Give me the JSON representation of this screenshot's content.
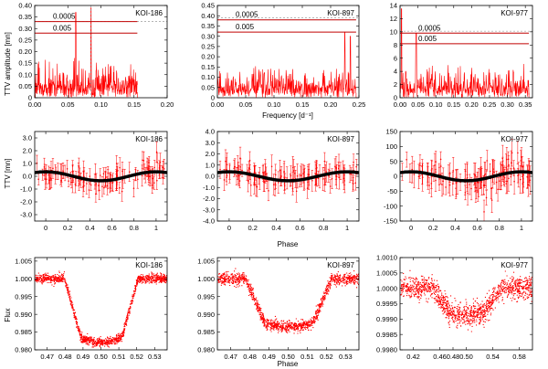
{
  "figure": {
    "ylabels": {
      "row0": "TTV amplitude [mn]",
      "row1": "TTV [mn]",
      "row2": "Flux"
    },
    "xlabels": {
      "row0": "Frequency [d⁻¹]",
      "row1": "Phase",
      "row2": "Phase"
    },
    "colors": {
      "data": "#ff0000",
      "model": "#000000",
      "threshold": "#c00000",
      "dashed": "#888888"
    }
  },
  "chart_data": [
    {
      "type": "line",
      "row": 0,
      "col": 0,
      "label": "KOI-186",
      "xlim": [
        0,
        0.2
      ],
      "ylim": [
        0,
        0.4
      ],
      "xticks": [
        "0.00",
        "0.05",
        "0.10",
        "0.15",
        "0.20"
      ],
      "yticks": [
        "0",
        "0.05",
        "0.10",
        "0.15",
        "0.20",
        "0.25",
        "0.30",
        "0.35",
        "0.40"
      ],
      "xmax_data": 0.155,
      "base": 0.06,
      "noise": 0.12,
      "peaks": [
        [
          0.062,
          0.37
        ],
        [
          0.085,
          0.39
        ]
      ],
      "thresholds": [
        {
          "label": "0.0005",
          "value": 0.33
        },
        {
          "label": "0.005",
          "value": 0.28
        }
      ],
      "dashed_y": 0.33,
      "dashed_x": 0.085
    },
    {
      "type": "line",
      "row": 0,
      "col": 1,
      "label": "KOI-897",
      "xlim": [
        0,
        0.25
      ],
      "ylim": [
        0,
        0.45
      ],
      "xticks": [
        "0.00",
        "0.05",
        "0.10",
        "0.15",
        "0.20",
        "0.25"
      ],
      "yticks": [
        "0",
        "0.05",
        "0.10",
        "0.15",
        "0.20",
        "0.25",
        "0.30",
        "0.35",
        "0.40",
        "0.45"
      ],
      "xmax_data": 0.245,
      "base": 0.06,
      "noise": 0.1,
      "peaks": [
        [
          0.225,
          0.32
        ],
        [
          0.235,
          0.3
        ]
      ],
      "thresholds": [
        {
          "label": "0.0005",
          "value": 0.38
        },
        {
          "label": "0.005",
          "value": 0.32
        }
      ],
      "dashed_y": 0.39,
      "dashed_x": null
    },
    {
      "type": "line",
      "row": 0,
      "col": 2,
      "label": "KOI-977",
      "xlim": [
        0,
        0.37
      ],
      "ylim": [
        0,
        14
      ],
      "xticks": [
        "0.00",
        "0.05",
        "0.10",
        "0.15",
        "0.20",
        "0.25",
        "0.30",
        "0.35"
      ],
      "yticks": [
        "0",
        "2",
        "4",
        "6",
        "8",
        "10",
        "12",
        "14"
      ],
      "xmax_data": 0.36,
      "base": 1.8,
      "noise": 3.5,
      "peaks": [
        [
          0.004,
          13.5
        ],
        [
          0.045,
          9.8
        ]
      ],
      "thresholds": [
        {
          "label": "0.0005",
          "value": 9.8
        },
        {
          "label": "0.005",
          "value": 8.2
        }
      ],
      "dashed_y": 10.1,
      "dashed_x": null
    },
    {
      "type": "scatter",
      "row": 1,
      "col": 0,
      "label": "KOI-186",
      "xlim": [
        -0.1,
        1.1
      ],
      "ylim": [
        -3.5,
        3.5
      ],
      "xticks": [
        "0",
        "0.2",
        "0.4",
        "0.6",
        "0.8",
        "1"
      ],
      "yticks": [
        "-3.0",
        "-2.0",
        "-1.0",
        "0.0",
        "1.0",
        "2.0",
        "3.0"
      ],
      "amp": 0.35,
      "err": 0.7,
      "scatter": 0.5
    },
    {
      "type": "scatter",
      "row": 1,
      "col": 1,
      "label": "KOI-897",
      "xlim": [
        -0.1,
        1.1
      ],
      "ylim": [
        -4,
        4
      ],
      "xticks": [
        "0",
        "0.2",
        "0.4",
        "0.6",
        "0.8",
        "1"
      ],
      "yticks": [
        "-4.0",
        "-3.0",
        "-2.0",
        "-1.0",
        "0.0",
        "1.0",
        "2.0",
        "3.0",
        "4.0"
      ],
      "amp": 0.4,
      "err": 0.9,
      "scatter": 0.6
    },
    {
      "type": "scatter",
      "row": 1,
      "col": 2,
      "label": "KOI-977",
      "xlim": [
        -0.1,
        1.1
      ],
      "ylim": [
        -150,
        150
      ],
      "xticks": [
        "0",
        "0.2",
        "0.4",
        "0.6",
        "0.8",
        "1"
      ],
      "yticks": [
        "-150",
        "-100",
        "-50",
        "0",
        "50",
        "100",
        "150"
      ],
      "amp": 15,
      "err": 40,
      "scatter": 25
    },
    {
      "type": "scatter",
      "row": 2,
      "col": 0,
      "label": "KOI-186",
      "xlim": [
        0.463,
        0.537
      ],
      "ylim": [
        0.98,
        1.006
      ],
      "xticks": [
        "0.47",
        "0.48",
        "0.49",
        "0.50",
        "0.51",
        "0.52",
        "0.53"
      ],
      "yticks": [
        "0.980",
        "0.985",
        "0.990",
        "0.995",
        "1.000",
        "1.005"
      ],
      "depth": 0.0165,
      "t1": 0.4795,
      "t2": 0.4885,
      "t3": 0.5115,
      "t4": 0.5205,
      "noise": 0.0006
    },
    {
      "type": "scatter",
      "row": 2,
      "col": 1,
      "label": "KOI-897",
      "xlim": [
        0.463,
        0.537
      ],
      "ylim": [
        0.98,
        1.006
      ],
      "xticks": [
        "0.47",
        "0.48",
        "0.49",
        "0.50",
        "0.51",
        "0.52",
        "0.53"
      ],
      "yticks": [
        "0.980",
        "0.985",
        "0.990",
        "0.995",
        "1.000",
        "1.005"
      ],
      "depth": 0.0125,
      "t1": 0.4775,
      "t2": 0.4875,
      "t3": 0.5125,
      "t4": 0.5225,
      "noise": 0.0008
    },
    {
      "type": "scatter",
      "row": 2,
      "col": 2,
      "label": "KOI-977",
      "xlim": [
        0.4,
        0.6
      ],
      "ylim": [
        0.998,
        1.001
      ],
      "xticks": [
        "0.42",
        "0.46",
        "0.48",
        "0.50",
        "0.54",
        "0.58"
      ],
      "yticks": [
        "0.9980",
        "0.9985",
        "0.9990",
        "0.9995",
        "1.0000",
        "1.0005",
        "1.0010"
      ],
      "depth": 0.0008,
      "t1": 0.448,
      "t2": 0.475,
      "t3": 0.525,
      "t4": 0.552,
      "noise": 0.00018
    }
  ]
}
